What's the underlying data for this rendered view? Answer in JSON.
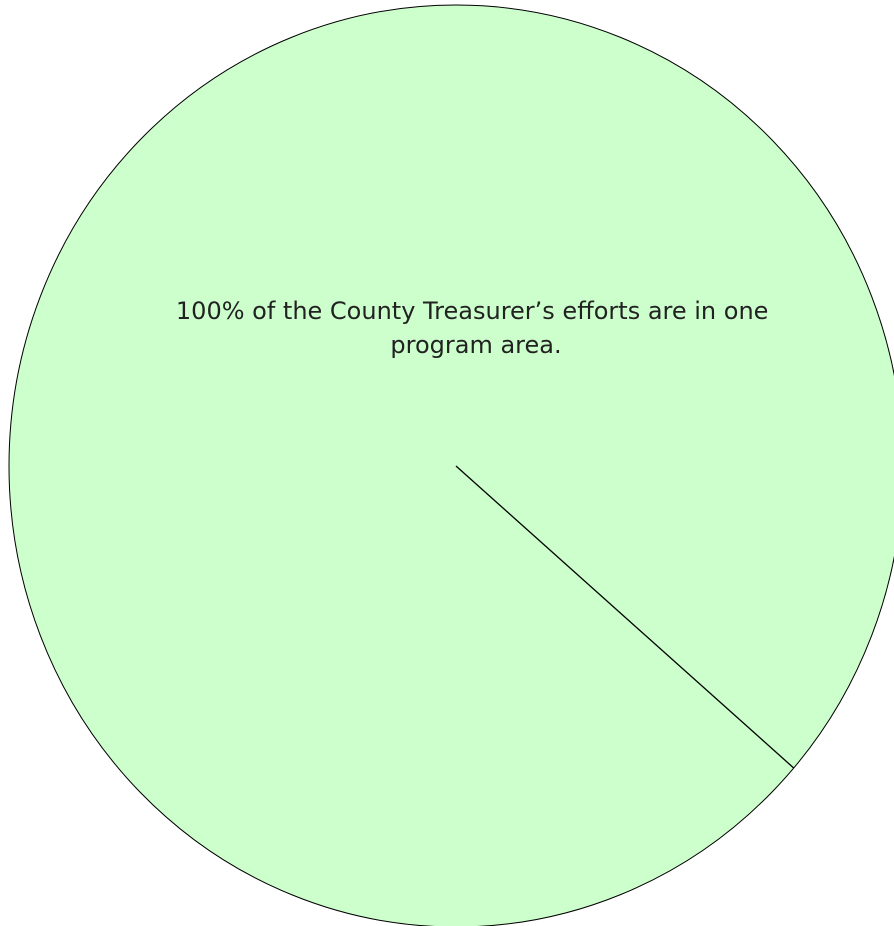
{
  "chart_data": {
    "type": "pie",
    "title": "",
    "slices": [
      {
        "label": "100% of the County Treasurer’s efforts are in one program area.",
        "label_lines": [
          "100% of the County Treasurer’s efforts are in one",
          "program area."
        ],
        "value": 100
      }
    ],
    "legend": "none",
    "colors": {
      "slice_fill": "#ccffcc",
      "outline": "#000000",
      "label_text": "#222222"
    }
  }
}
